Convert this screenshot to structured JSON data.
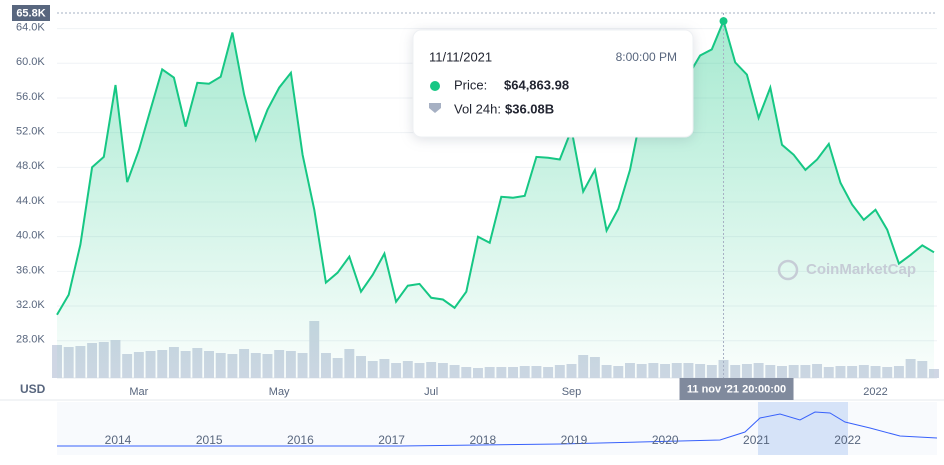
{
  "chart_data": {
    "type": "line",
    "currency_label": "USD",
    "watermark": "CoinMarketCap",
    "categories": [
      null,
      null,
      null,
      null,
      null,
      null,
      null,
      "Mar",
      null,
      null,
      null,
      null,
      null,
      null,
      null,
      null,
      null,
      null,
      null,
      "May",
      null,
      null,
      null,
      null,
      null,
      null,
      null,
      null,
      null,
      null,
      null,
      null,
      "Jul",
      null,
      null,
      null,
      null,
      null,
      null,
      null,
      null,
      null,
      null,
      null,
      "Sep",
      null,
      null,
      null,
      null,
      null,
      null,
      null,
      null,
      null,
      null,
      null,
      null,
      null,
      null,
      null,
      null,
      null,
      null,
      null,
      null,
      null,
      null,
      null,
      null,
      null,
      "2022",
      null,
      null,
      null,
      null,
      null
    ],
    "series": [
      {
        "name": "Price",
        "color": "#16c784",
        "values": [
          31000,
          33300,
          39100,
          48000,
          49200,
          57500,
          46300,
          50000,
          54650,
          59300,
          58350,
          52700,
          57750,
          57650,
          58450,
          63550,
          56400,
          51200,
          54650,
          57200,
          58900,
          49450,
          43100,
          34700,
          35850,
          37700,
          33650,
          35600,
          38050,
          32500,
          34350,
          34550,
          32950,
          32750,
          31800,
          33650,
          40000,
          39300,
          44600,
          44500,
          44700,
          49200,
          49100,
          48900,
          52350,
          45200,
          47700,
          40700,
          43200,
          47700,
          54400,
          58100,
          60400,
          60900,
          58600,
          60900,
          61600,
          64863.98,
          60100,
          58700,
          53700,
          57200,
          50600,
          49450,
          47700,
          48900,
          50700,
          46200,
          43700,
          41950,
          43100,
          40800,
          36900,
          37900,
          39000,
          38200
        ]
      },
      {
        "name": "Vol 24h",
        "color": "#cfd6e4",
        "axis": "y2",
        "values": [
          66,
          62,
          64,
          70,
          72,
          76,
          48,
          52,
          54,
          56,
          62,
          54,
          60,
          54,
          50,
          48,
          58,
          50,
          48,
          56,
          54,
          50,
          114,
          50,
          40,
          58,
          44,
          34,
          38,
          30,
          34,
          30,
          32,
          30,
          26,
          22,
          20,
          22,
          22,
          22,
          24,
          24,
          22,
          26,
          28,
          46,
          42,
          26,
          24,
          30,
          28,
          30,
          28,
          30,
          30,
          28,
          26,
          36.08,
          26,
          28,
          30,
          26,
          24,
          26,
          26,
          28,
          22,
          24,
          24,
          26,
          24,
          22,
          24,
          38,
          34,
          18
        ]
      }
    ],
    "ylim": [
      23700,
      65800
    ],
    "yticks": [
      {
        "value": 28000,
        "label": "28.0K"
      },
      {
        "value": 32000,
        "label": "32.0K"
      },
      {
        "value": 36000,
        "label": "36.0K"
      },
      {
        "value": 40000,
        "label": "40.0K"
      },
      {
        "value": 44000,
        "label": "44.0K"
      },
      {
        "value": 48000,
        "label": "48.0K"
      },
      {
        "value": 52000,
        "label": "52.0K"
      },
      {
        "value": 56000,
        "label": "56.0K"
      },
      {
        "value": 60000,
        "label": "60.0K"
      },
      {
        "value": 64000,
        "label": "64.0K"
      }
    ],
    "y2lim": [
      0,
      730
    ],
    "grid": true,
    "crosshair": {
      "price_label": "65.8K",
      "time_label": "11 nov '21  20:00:00"
    },
    "tooltip": {
      "date": "11/11/2021",
      "time": "8:00:00 PM",
      "price_label": "Price:",
      "price": "$64,863.98",
      "volume_label": "Vol 24h:",
      "volume": "$36.08B"
    },
    "navigator": {
      "years": [
        "2014",
        "2015",
        "2016",
        "2017",
        "2018",
        "2019",
        "2020",
        "2021",
        "2022"
      ]
    }
  }
}
